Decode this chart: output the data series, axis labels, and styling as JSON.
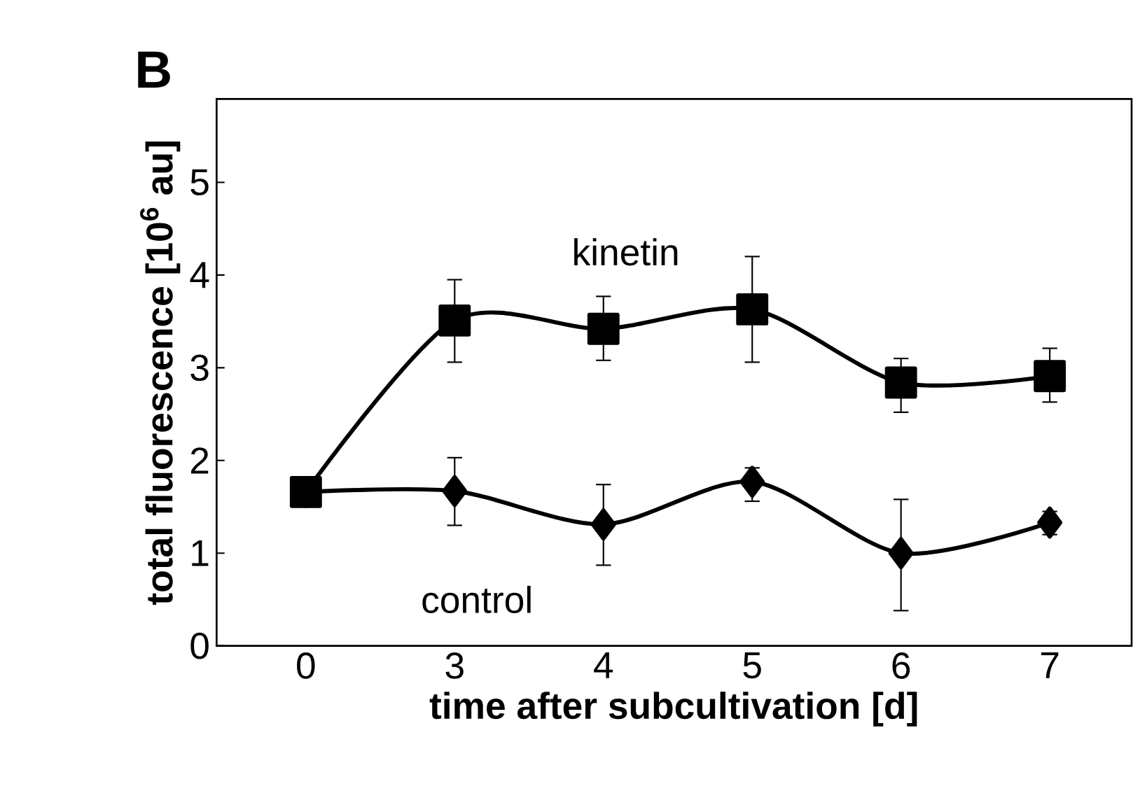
{
  "chart_data": {
    "type": "line",
    "title": "B",
    "xlabel": "time after subcultivation [d]",
    "ylabel": "total fluorescence [10$^{6}$ au]",
    "categories": [
      "0",
      "3",
      "4",
      "5",
      "6",
      "7"
    ],
    "ylim": [
      0,
      5.9
    ],
    "yticks": [
      0,
      1,
      2,
      3,
      4,
      5
    ],
    "grid": false,
    "series": [
      {
        "name": "control",
        "color": "#000000",
        "marker": "diamond",
        "values": [
          1.66,
          1.67,
          1.31,
          1.77,
          1.0,
          1.33
        ],
        "errors": [
          null,
          [
            1.3,
            2.03
          ],
          [
            0.87,
            1.74
          ],
          [
            1.56,
            1.92
          ],
          [
            0.38,
            1.58
          ],
          [
            1.2,
            1.45
          ]
        ]
      },
      {
        "name": "kinetin",
        "color": "#000000",
        "marker": "square",
        "values": [
          1.66,
          3.51,
          3.42,
          3.63,
          2.84,
          2.91
        ],
        "errors": [
          [
            1.5,
            1.66
          ],
          [
            3.06,
            3.95
          ],
          [
            3.08,
            3.77
          ],
          [
            3.06,
            4.2
          ],
          [
            2.52,
            3.1
          ],
          [
            2.63,
            3.21
          ]
        ]
      }
    ]
  }
}
